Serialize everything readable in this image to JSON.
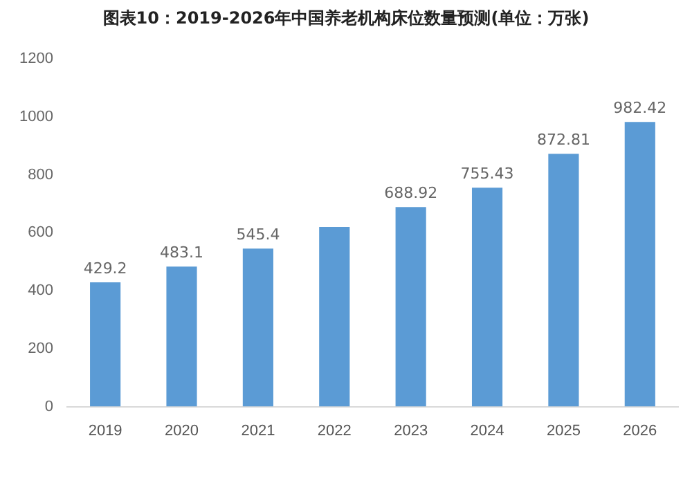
{
  "chart_data": {
    "type": "bar",
    "title": "图表10：2019-2026年中国养老机构床位数量预测(单位：万张)",
    "categories": [
      "2019",
      "2020",
      "2021",
      "2022",
      "2023",
      "2024",
      "2025",
      "2026"
    ],
    "values": [
      429.2,
      483.1,
      545.4,
      620,
      688.92,
      755.43,
      872.81,
      982.42
    ],
    "value_labels": [
      "429.2",
      "483.1",
      "545.4",
      null,
      "688.92",
      "755.43",
      "872.81",
      "982.42"
    ],
    "color": "#5b9bd5",
    "ylim": [
      0,
      1200
    ],
    "yticks": [
      0,
      200,
      400,
      600,
      800,
      1000,
      1200
    ],
    "grid": false
  }
}
